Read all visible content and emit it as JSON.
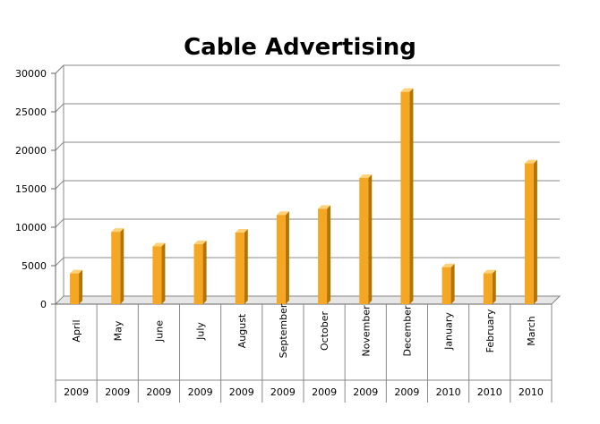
{
  "chart_data": {
    "type": "bar",
    "title": "Cable Advertising",
    "xlabel": "",
    "ylabel": "",
    "categories": [
      "April",
      "May",
      "June",
      "July",
      "August",
      "September",
      "October",
      "November",
      "December",
      "January",
      "February",
      "March"
    ],
    "years": [
      "2009",
      "2009",
      "2009",
      "2009",
      "2009",
      "2009",
      "2009",
      "2009",
      "2009",
      "2010",
      "2010",
      "2010"
    ],
    "values": [
      4000,
      9400,
      7500,
      7800,
      9300,
      11600,
      12400,
      16400,
      27600,
      4800,
      4000,
      18300
    ],
    "ylim": [
      0,
      30000
    ],
    "yticks": [
      "0",
      "5000",
      "10000",
      "15000",
      "20000",
      "25000",
      "30000"
    ],
    "grid": true,
    "legend": "none",
    "bar_color": "#F5A623",
    "bar_side_color": "#B37400",
    "bar_top_color": "#FFD27A"
  }
}
